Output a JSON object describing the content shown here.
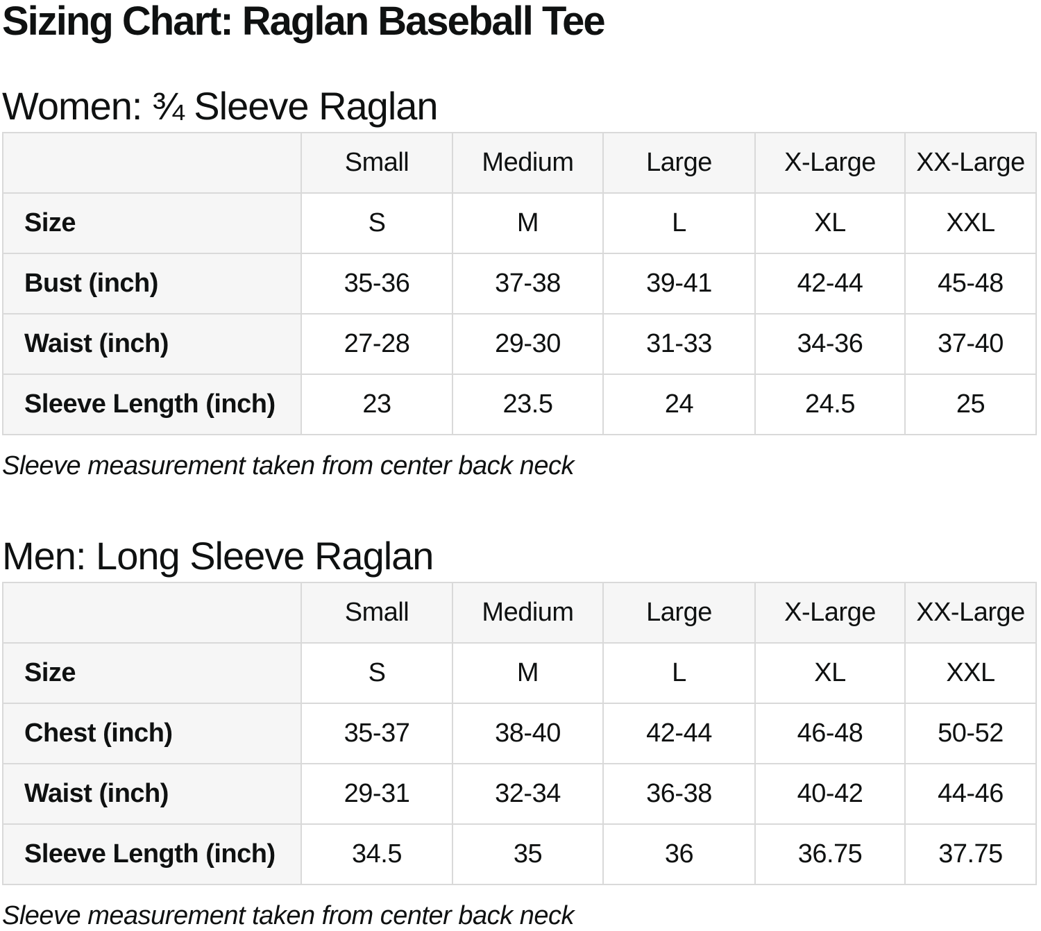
{
  "page": {
    "title": "Sizing Chart: Raglan Baseball Tee"
  },
  "colors": {
    "header_background": "#f6f6f6",
    "table_border": "#d9d9d9",
    "text": "#0f1111",
    "page_background": "#ffffff"
  },
  "women": {
    "heading": "Women: ¾ Sleeve Raglan",
    "columns": [
      "",
      "Small",
      "Medium",
      "Large",
      "X-Large",
      "XX-Large"
    ],
    "rows": [
      {
        "label": "Size",
        "values": [
          "S",
          "M",
          "L",
          "XL",
          "XXL"
        ]
      },
      {
        "label": "Bust (inch)",
        "values": [
          "35-36",
          "37-38",
          "39-41",
          "42-44",
          "45-48"
        ]
      },
      {
        "label": "Waist (inch)",
        "values": [
          "27-28",
          "29-30",
          "31-33",
          "34-36",
          "37-40"
        ]
      },
      {
        "label": "Sleeve Length (inch)",
        "values": [
          "23",
          "23.5",
          "24",
          "24.5",
          "25"
        ]
      }
    ],
    "note": "Sleeve measurement taken from center back neck"
  },
  "men": {
    "heading": "Men: Long Sleeve Raglan",
    "columns": [
      "",
      "Small",
      "Medium",
      "Large",
      "X-Large",
      "XX-Large"
    ],
    "rows": [
      {
        "label": "Size",
        "values": [
          "S",
          "M",
          "L",
          "XL",
          "XXL"
        ]
      },
      {
        "label": "Chest (inch)",
        "values": [
          "35-37",
          "38-40",
          "42-44",
          "46-48",
          "50-52"
        ]
      },
      {
        "label": "Waist (inch)",
        "values": [
          "29-31",
          "32-34",
          "36-38",
          "40-42",
          "44-46"
        ]
      },
      {
        "label": "Sleeve Length (inch)",
        "values": [
          "34.5",
          "35",
          "36",
          "36.75",
          "37.75"
        ]
      }
    ],
    "note": "Sleeve measurement taken from center back neck"
  }
}
